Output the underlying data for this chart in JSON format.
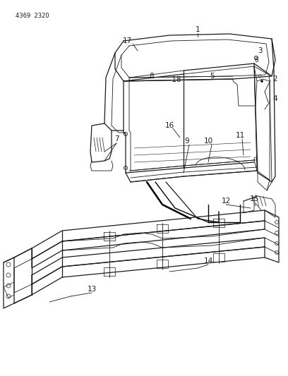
{
  "header_text": "4369  2320",
  "background_color": "#ffffff",
  "line_color": "#1a1a1a",
  "label_color": "#1a1a1a",
  "figsize": [
    4.08,
    5.33
  ],
  "dpi": 100,
  "cab_color": "#e8e8e8",
  "frame_color": "#d0d0d0"
}
